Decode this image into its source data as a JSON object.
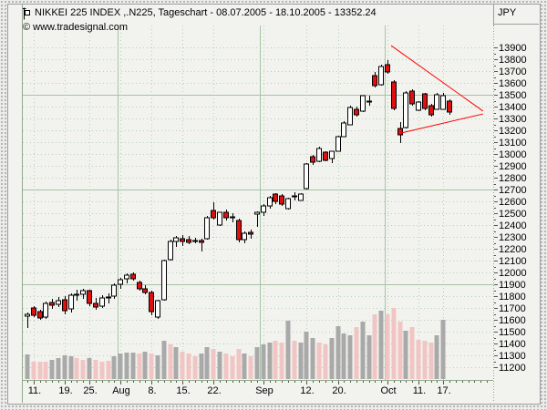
{
  "window": {
    "title": "NIKKEI 225 INDEX ,.N225, Tageschart - 08.07.2005 - 18.10.2005 - 13352.24",
    "copyright": "© www.tradesignal.com",
    "currency_label": "JPY"
  },
  "chart_data": {
    "type": "candlestick",
    "name": "NIKKEI 225 INDEX",
    "symbol": ".N225",
    "timeframe": "Tageschart",
    "range_start": "08.07.2005",
    "range_end": "18.10.2005",
    "last_value": 13352.24,
    "currency": "JPY",
    "grid": "dotted-minor-solid-major",
    "legend_position": "none",
    "y_axis_side": "right",
    "ylim": [
      11100,
      14000
    ],
    "ylabel_values": [
      13900,
      13800,
      13700,
      13600,
      13500,
      13400,
      13300,
      13200,
      13100,
      13000,
      12900,
      12800,
      12700,
      12600,
      12500,
      12400,
      12300,
      12200,
      12100,
      12000,
      11900,
      11800,
      11700,
      11600,
      11500,
      11400,
      11300,
      11200
    ],
    "solid_hlines": [
      13500,
      12700,
      11900
    ],
    "month_separators_index": [
      14.5,
      37.5,
      57.5
    ],
    "x_ticks": [
      {
        "label": "11.",
        "index": 1
      },
      {
        "label": "19.",
        "index": 6
      },
      {
        "label": "25.",
        "index": 10
      },
      {
        "label": "Aug",
        "index": 15
      },
      {
        "label": "8.",
        "index": 20
      },
      {
        "label": "15.",
        "index": 25
      },
      {
        "label": "22.",
        "index": 30
      },
      {
        "label": "Sep",
        "index": 38
      },
      {
        "label": "12.",
        "index": 45
      },
      {
        "label": "20.",
        "index": 50
      },
      {
        "label": "Oct",
        "index": 58
      },
      {
        "label": "11.",
        "index": 63
      },
      {
        "label": "17.",
        "index": 67
      }
    ],
    "candles": [
      [
        "08.07",
        11630,
        11660,
        11530,
        11645
      ],
      [
        "11.07",
        11700,
        11715,
        11625,
        11640
      ],
      [
        "12.07",
        11670,
        11685,
        11600,
        11615
      ],
      [
        "13.07",
        11620,
        11755,
        11605,
        11740
      ],
      [
        "14.07",
        11745,
        11775,
        11695,
        11725
      ],
      [
        "15.07",
        11730,
        11795,
        11705,
        11765
      ],
      [
        "19.07",
        11770,
        11800,
        11645,
        11675
      ],
      [
        "20.07",
        11690,
        11825,
        11665,
        11805
      ],
      [
        "21.07",
        11805,
        11855,
        11765,
        11815
      ],
      [
        "22.07",
        11815,
        11865,
        11780,
        11845
      ],
      [
        "25.07",
        11845,
        11855,
        11715,
        11740
      ],
      [
        "26.07",
        11740,
        11785,
        11685,
        11705
      ],
      [
        "27.07",
        11715,
        11805,
        11700,
        11785
      ],
      [
        "28.07",
        11785,
        11825,
        11740,
        11795
      ],
      [
        "29.07",
        11800,
        11905,
        11775,
        11895
      ],
      [
        "01.08",
        11900,
        11955,
        11865,
        11940
      ],
      [
        "02.08",
        11945,
        11995,
        11910,
        11980
      ],
      [
        "03.08",
        11985,
        12000,
        11930,
        11950
      ],
      [
        "04.08",
        11915,
        11930,
        11850,
        11860
      ],
      [
        "05.08",
        11865,
        11895,
        11815,
        11830
      ],
      [
        "08.08",
        11830,
        11850,
        11640,
        11670
      ],
      [
        "09.08",
        11620,
        11770,
        11610,
        11760
      ],
      [
        "10.08",
        11770,
        12110,
        11765,
        12100
      ],
      [
        "11.08",
        12110,
        12275,
        12100,
        12260
      ],
      [
        "12.08",
        12265,
        12305,
        12215,
        12290
      ],
      [
        "15.08",
        12285,
        12315,
        12225,
        12260
      ],
      [
        "16.08",
        12280,
        12305,
        12240,
        12255
      ],
      [
        "17.08",
        12270,
        12290,
        12250,
        12262
      ],
      [
        "18.08",
        12272,
        12282,
        12180,
        12255
      ],
      [
        "19.08",
        12285,
        12480,
        12280,
        12465
      ],
      [
        "22.08",
        12520,
        12590,
        12450,
        12460
      ],
      [
        "23.08",
        12400,
        12510,
        12395,
        12505
      ],
      [
        "24.08",
        12505,
        12530,
        12440,
        12460
      ],
      [
        "25.08",
        12460,
        12500,
        12425,
        12472
      ],
      [
        "26.08",
        12440,
        12455,
        12255,
        12280
      ],
      [
        "29.08",
        12275,
        12345,
        12250,
        12330
      ],
      [
        "30.08",
        12340,
        12365,
        12285,
        12320
      ],
      [
        "31.08",
        12495,
        12518,
        12385,
        12505
      ],
      [
        "01.09",
        12505,
        12575,
        12480,
        12560
      ],
      [
        "02.09",
        12565,
        12650,
        12540,
        12630
      ],
      [
        "05.09",
        12665,
        12672,
        12580,
        12600
      ],
      [
        "06.09",
        12650,
        12658,
        12560,
        12575
      ],
      [
        "07.09",
        12535,
        12628,
        12530,
        12620
      ],
      [
        "08.09",
        12650,
        12680,
        12610,
        12635
      ],
      [
        "09.09",
        12610,
        12672,
        12605,
        12665
      ],
      [
        "12.09",
        12705,
        12925,
        12700,
        12915
      ],
      [
        "13.09",
        12980,
        12995,
        12905,
        12930
      ],
      [
        "14.09",
        12935,
        13060,
        12930,
        13050
      ],
      [
        "15.09",
        13012,
        13022,
        12935,
        12945
      ],
      [
        "16.09",
        12960,
        13026,
        12925,
        13020
      ],
      [
        "20.09",
        13025,
        13152,
        13020,
        13145
      ],
      [
        "21.09",
        13150,
        13276,
        13145,
        13260
      ],
      [
        "22.09",
        13250,
        13406,
        13245,
        13395
      ],
      [
        "26.09",
        13375,
        13402,
        13318,
        13330
      ],
      [
        "27.09",
        13360,
        13496,
        13355,
        13490
      ],
      [
        "28.09",
        13448,
        13492,
        13406,
        13438
      ],
      [
        "29.09",
        13665,
        13696,
        13558,
        13575
      ],
      [
        "30.09",
        13585,
        13752,
        13578,
        13740
      ],
      [
        "03.10",
        13755,
        13792,
        13680,
        13690
      ],
      [
        "04.10",
        13610,
        13622,
        13372,
        13385
      ],
      [
        "05.10",
        13215,
        13266,
        13092,
        13160
      ],
      [
        "06.10",
        13225,
        13532,
        13218,
        13515
      ],
      [
        "07.10",
        13530,
        13546,
        13406,
        13420
      ],
      [
        "11.10",
        13370,
        13446,
        13362,
        13435
      ],
      [
        "12.10",
        13505,
        13516,
        13372,
        13382
      ],
      [
        "13.10",
        13410,
        13422,
        13316,
        13330
      ],
      [
        "14.10",
        13380,
        13512,
        13376,
        13500
      ],
      [
        "17.10",
        13380,
        13512,
        13375,
        13495
      ],
      [
        "18.10",
        13450,
        13465,
        13330,
        13352
      ]
    ],
    "volume_bars": [
      [
        27,
        "g"
      ],
      [
        19,
        "p"
      ],
      [
        19,
        "p"
      ],
      [
        19,
        "p"
      ],
      [
        21,
        "g"
      ],
      [
        23,
        "g"
      ],
      [
        26,
        "g"
      ],
      [
        25,
        "g"
      ],
      [
        23,
        "p"
      ],
      [
        21,
        "p"
      ],
      [
        23,
        "g"
      ],
      [
        21,
        "p"
      ],
      [
        19,
        "p"
      ],
      [
        20,
        "p"
      ],
      [
        25,
        "g"
      ],
      [
        28,
        "g"
      ],
      [
        29,
        "g"
      ],
      [
        29,
        "g"
      ],
      [
        28,
        "p"
      ],
      [
        30,
        "g"
      ],
      [
        28,
        "p"
      ],
      [
        26,
        "g"
      ],
      [
        42,
        "g"
      ],
      [
        38,
        "p"
      ],
      [
        35,
        "g"
      ],
      [
        30,
        "p"
      ],
      [
        28,
        "p"
      ],
      [
        25,
        "p"
      ],
      [
        28,
        "g"
      ],
      [
        35,
        "g"
      ],
      [
        33,
        "p"
      ],
      [
        30,
        "g"
      ],
      [
        28,
        "p"
      ],
      [
        25,
        "p"
      ],
      [
        33,
        "p"
      ],
      [
        28,
        "g"
      ],
      [
        25,
        "p"
      ],
      [
        35,
        "g"
      ],
      [
        38,
        "g"
      ],
      [
        40,
        "g"
      ],
      [
        42,
        "p"
      ],
      [
        40,
        "p"
      ],
      [
        64,
        "g"
      ],
      [
        42,
        "p"
      ],
      [
        40,
        "g"
      ],
      [
        52,
        "g"
      ],
      [
        45,
        "g"
      ],
      [
        40,
        "p"
      ],
      [
        38,
        "p"
      ],
      [
        45,
        "g"
      ],
      [
        58,
        "g"
      ],
      [
        50,
        "g"
      ],
      [
        48,
        "g"
      ],
      [
        57,
        "p"
      ],
      [
        63,
        "g"
      ],
      [
        48,
        "g"
      ],
      [
        71,
        "p"
      ],
      [
        75,
        "g"
      ],
      [
        71,
        "p"
      ],
      [
        78,
        "p"
      ],
      [
        63,
        "p"
      ],
      [
        53,
        "g"
      ],
      [
        57,
        "p"
      ],
      [
        43,
        "p"
      ],
      [
        42,
        "p"
      ],
      [
        40,
        "p"
      ],
      [
        48,
        "g"
      ],
      [
        65,
        "g"
      ],
      [
        0,
        "g"
      ]
    ],
    "trendlines": [
      {
        "from_index": 58.6,
        "from_value": 13915,
        "to_index": 73.4,
        "to_value": 13362
      },
      {
        "from_index": 60.2,
        "from_value": 13177,
        "to_index": 73.4,
        "to_value": 13338
      }
    ],
    "colors": {
      "up_fill": "#ffffff",
      "down_fill": "#e01010",
      "candle_outline": "#000000",
      "volume_gray": "#a9a9a9",
      "volume_pink": "#f2c5c5",
      "grid_solid": "#a6c3a6",
      "grid_dotted": "#b7cfb7",
      "trendline": "#ff0000",
      "axis_line": "#8fa98f",
      "tick": "#555555",
      "text": "#000000"
    }
  }
}
